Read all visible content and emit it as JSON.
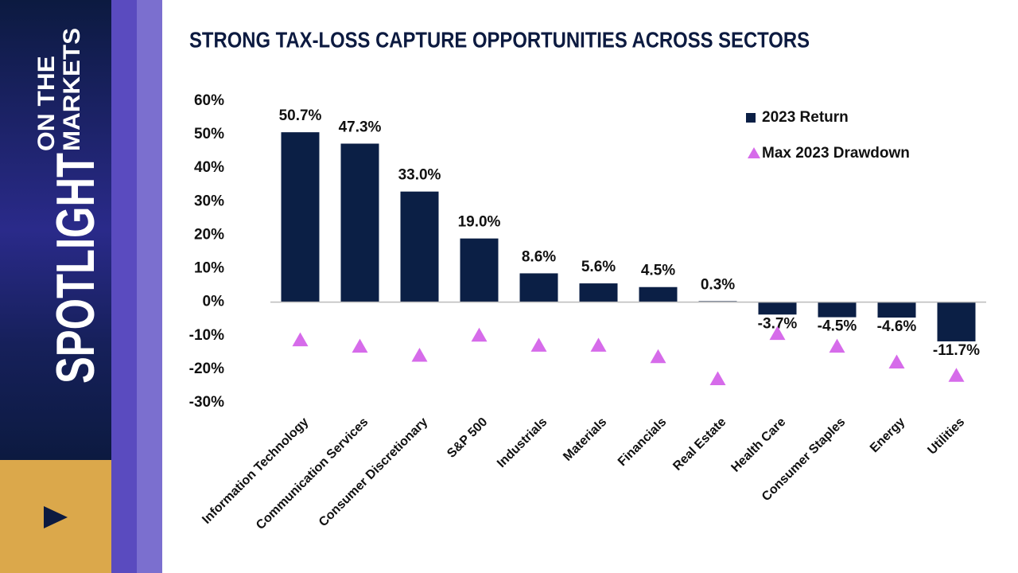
{
  "sidebar": {
    "brand": "SPOTLIGHT",
    "tagline": [
      "ON THE",
      "MARKETS"
    ]
  },
  "chart_data": {
    "type": "bar",
    "title": "STRONG TAX-LOSS CAPTURE OPPORTUNITIES ACROSS SECTORS",
    "categories": [
      "Information Technology",
      "Communication Services",
      "Consumer Discretionary",
      "S&P 500",
      "Industrials",
      "Materials",
      "Financials",
      "Real Estate",
      "Health Care",
      "Consumer Staples",
      "Energy",
      "Utilities"
    ],
    "series": [
      {
        "name": "2023 Return",
        "type": "bar",
        "color": "#0b1f45",
        "values": [
          50.7,
          47.3,
          33.0,
          19.0,
          8.6,
          5.6,
          4.5,
          0.3,
          -3.7,
          -4.5,
          -4.6,
          -11.7
        ],
        "value_labels": [
          "50.7%",
          "47.3%",
          "33.0%",
          "19.0%",
          "8.6%",
          "5.6%",
          "4.5%",
          "0.3%",
          "-3.7%",
          "-4.5%",
          "-4.6%",
          "-11.7%"
        ]
      },
      {
        "name": "Max 2023 Drawdown",
        "type": "scatter",
        "color": "#d66bea",
        "values": [
          -11.4,
          -13.3,
          -16,
          -10,
          -13,
          -13,
          -16.4,
          -23,
          -9.5,
          -13.3,
          -18,
          -22
        ]
      }
    ],
    "ylim": [
      -30,
      60
    ],
    "yticks": [
      {
        "value": 60,
        "label": "60%"
      },
      {
        "value": 50,
        "label": "50%"
      },
      {
        "value": 40,
        "label": "40%"
      },
      {
        "value": 30,
        "label": "30%"
      },
      {
        "value": 20,
        "label": "20%"
      },
      {
        "value": 10,
        "label": "10%"
      },
      {
        "value": 0,
        "label": "0%"
      },
      {
        "value": -10,
        "label": "-10%"
      },
      {
        "value": -20,
        "label": "-20%"
      },
      {
        "value": -30,
        "label": "-30%"
      }
    ],
    "legend": "upper right"
  }
}
